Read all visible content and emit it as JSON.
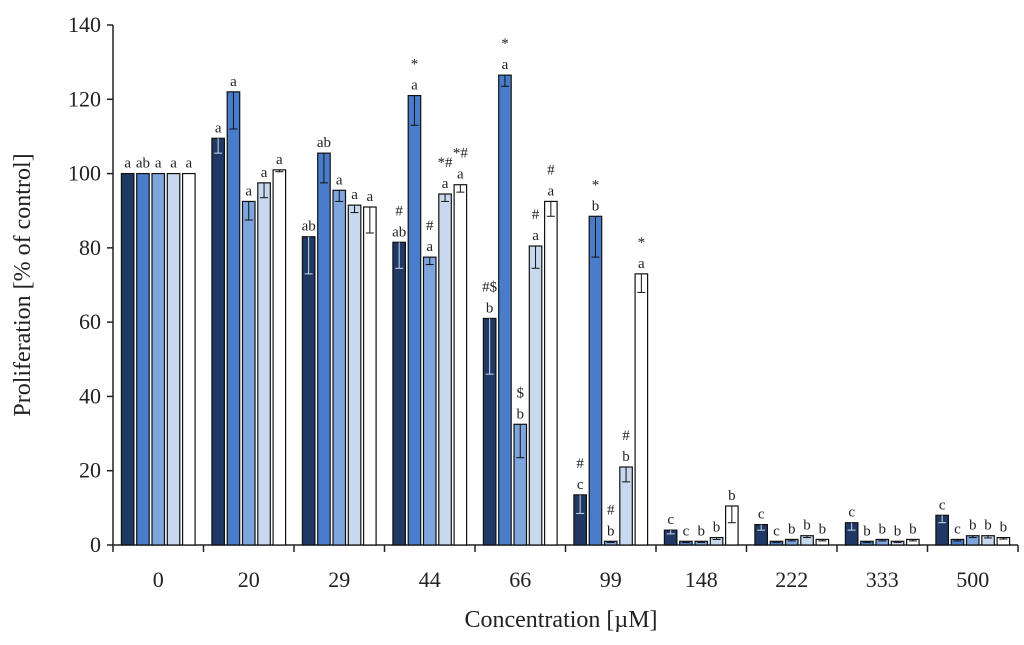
{
  "chart_data": {
    "type": "bar",
    "title": "",
    "xlabel": "Concentration [µM]",
    "ylabel": "Proliferation [% of control]",
    "ylim": [
      0,
      140
    ],
    "yticks": [
      0,
      20,
      40,
      60,
      80,
      100,
      120,
      140
    ],
    "grid": false,
    "legend": "none",
    "categories": [
      "0",
      "20",
      "29",
      "44",
      "66",
      "99",
      "148",
      "222",
      "333",
      "500"
    ],
    "series_colors": [
      "#1f3864",
      "#4a7ccc",
      "#7ea5dc",
      "#c8d9ef",
      "#ffffff"
    ],
    "series": [
      {
        "values": [
          100,
          109.5,
          83,
          81.5,
          61,
          13.5,
          4,
          5.5,
          6,
          8
        ],
        "errors": [
          0,
          4,
          10,
          7,
          15,
          5,
          1,
          1.5,
          2,
          2
        ],
        "labels": [
          "a",
          "a",
          "ab",
          "#\nab",
          "#$\nb",
          "#\nc",
          "c",
          "c",
          "c",
          "c"
        ]
      },
      {
        "values": [
          100,
          122,
          105.5,
          121,
          126.5,
          88.5,
          1,
          1,
          1,
          1.5
        ],
        "errors": [
          0,
          10,
          8,
          8,
          3,
          11,
          0.3,
          0.3,
          0.3,
          0.4
        ],
        "labels": [
          "ab",
          "a",
          "ab",
          "*\na",
          "*\na",
          "*\nb",
          "c",
          "c",
          "b",
          "c"
        ]
      },
      {
        "values": [
          100,
          92.5,
          95.5,
          77.5,
          32.5,
          1,
          1,
          1.5,
          1.5,
          2.5
        ],
        "errors": [
          0,
          5,
          3,
          2,
          9,
          0.3,
          0.3,
          0.4,
          0.4,
          0.5
        ],
        "labels": [
          "a",
          "a",
          "a",
          "#\na",
          "$\nb",
          "#\nb",
          "b",
          "b",
          "b",
          "b"
        ]
      },
      {
        "values": [
          100,
          97.5,
          91.5,
          94.5,
          80.5,
          21,
          2,
          2.5,
          1,
          2.5
        ],
        "errors": [
          0,
          4,
          2,
          2,
          6,
          4,
          0.5,
          0.5,
          0.3,
          0.6
        ],
        "labels": [
          "a",
          "a",
          "a",
          "*#\na",
          "#\na",
          "#\nb",
          "b",
          "b",
          "b",
          "b"
        ]
      },
      {
        "values": [
          100,
          101,
          91,
          97,
          92.5,
          73,
          10.5,
          1.5,
          1.5,
          2
        ],
        "errors": [
          0,
          0.5,
          7,
          2,
          4,
          5,
          4.5,
          0.4,
          0.4,
          0.4
        ],
        "labels": [
          "a",
          "a",
          "a",
          "*#\na",
          "#\na",
          "*\na",
          "b",
          "b",
          "b",
          "b"
        ]
      }
    ]
  }
}
